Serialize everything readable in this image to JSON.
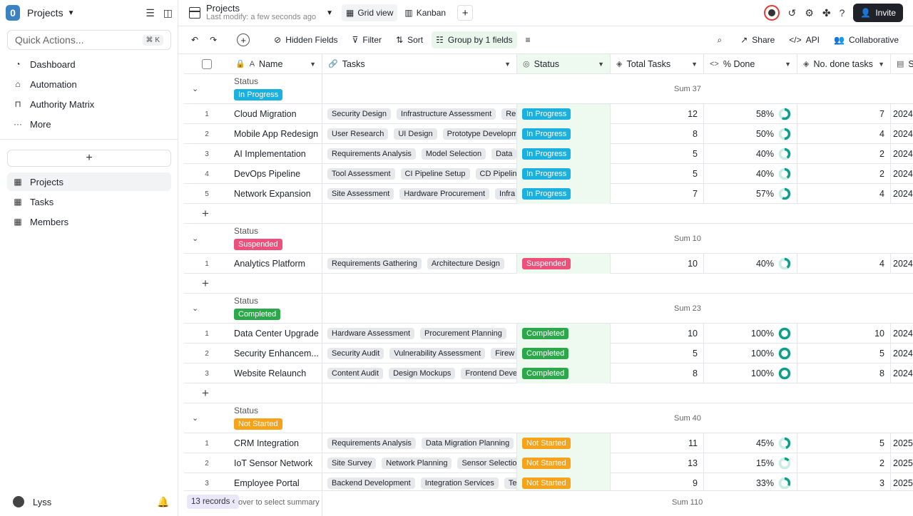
{
  "sidebar": {
    "logo_letter": "0",
    "space_name": "Projects",
    "quick_actions": "Quick Actions...",
    "quick_kbd": "⌘ K",
    "nav": [
      {
        "label": "Dashboard",
        "icon": "dashboard-icon"
      },
      {
        "label": "Automation",
        "icon": "robot-icon"
      },
      {
        "label": "Authority Matrix",
        "icon": "lock-icon"
      },
      {
        "label": "More",
        "icon": "more-icon"
      }
    ],
    "tables": [
      {
        "label": "Projects"
      },
      {
        "label": "Tasks"
      },
      {
        "label": "Members"
      }
    ],
    "user_name": "Lyss"
  },
  "header": {
    "title": "Projects",
    "subtitle": "Last modify: a few seconds ago",
    "views": [
      "Grid view",
      "Kanban"
    ],
    "invite_label": "Invite"
  },
  "toolbar": {
    "hidden_fields": "Hidden Fields",
    "filter": "Filter",
    "sort": "Sort",
    "group": "Group by 1 fields",
    "share": "Share",
    "api": "API",
    "collaborative": "Collaborative"
  },
  "columns": [
    "Name",
    "Tasks",
    "Status",
    "Total Tasks",
    "% Done",
    "No. done tasks",
    "S"
  ],
  "status_colors": {
    "In Progress": "#1ab0e0",
    "Suspended": "#ee4f7b",
    "Completed": "#2ba84a",
    "Not Started": "#f7a21b"
  },
  "groups": [
    {
      "status_label": "Status",
      "status": "In Progress",
      "sum": "Sum 37",
      "rows": [
        {
          "num": "1",
          "name": "Cloud Migration",
          "tasks": [
            "Security Design",
            "Infrastructure Assessment",
            "Re"
          ],
          "total": "12",
          "pct": "58%",
          "pct_value": 58,
          "done": "7",
          "date": "2024"
        },
        {
          "num": "2",
          "name": "Mobile App Redesign",
          "tasks": [
            "User Research",
            "UI Design",
            "Prototype Development"
          ],
          "total": "8",
          "pct": "50%",
          "pct_value": 50,
          "done": "4",
          "date": "2024"
        },
        {
          "num": "3",
          "name": "AI Implementation",
          "tasks": [
            "Requirements Analysis",
            "Model Selection",
            "Data"
          ],
          "total": "5",
          "pct": "40%",
          "pct_value": 40,
          "done": "2",
          "date": "2024"
        },
        {
          "num": "4",
          "name": "DevOps Pipeline",
          "tasks": [
            "Tool Assessment",
            "CI Pipeline Setup",
            "CD Pipeline"
          ],
          "total": "5",
          "pct": "40%",
          "pct_value": 40,
          "done": "2",
          "date": "2024"
        },
        {
          "num": "5",
          "name": "Network Expansion",
          "tasks": [
            "Site Assessment",
            "Hardware Procurement",
            "Infra"
          ],
          "total": "7",
          "pct": "57%",
          "pct_value": 57,
          "done": "4",
          "date": "2024"
        }
      ]
    },
    {
      "status_label": "Status",
      "status": "Suspended",
      "sum": "Sum 10",
      "rows": [
        {
          "num": "1",
          "name": "Analytics Platform",
          "tasks": [
            "Requirements Gathering",
            "Architecture Design"
          ],
          "total": "10",
          "pct": "40%",
          "pct_value": 40,
          "done": "4",
          "date": "2024"
        }
      ]
    },
    {
      "status_label": "Status",
      "status": "Completed",
      "sum": "Sum 23",
      "rows": [
        {
          "num": "1",
          "name": "Data Center Upgrade",
          "tasks": [
            "Hardware Assessment",
            "Procurement Planning"
          ],
          "total": "10",
          "pct": "100%",
          "pct_value": 100,
          "done": "10",
          "date": "2024"
        },
        {
          "num": "2",
          "name": "Security Enhancem...",
          "tasks": [
            "Security Audit",
            "Vulnerability Assessment",
            "Firew"
          ],
          "total": "5",
          "pct": "100%",
          "pct_value": 100,
          "done": "5",
          "date": "2024"
        },
        {
          "num": "3",
          "name": "Website Relaunch",
          "tasks": [
            "Content Audit",
            "Design Mockups",
            "Frontend Development"
          ],
          "total": "8",
          "pct": "100%",
          "pct_value": 100,
          "done": "8",
          "date": "2024"
        }
      ]
    },
    {
      "status_label": "Status",
      "status": "Not Started",
      "sum": "Sum 40",
      "rows": [
        {
          "num": "1",
          "name": "CRM Integration",
          "tasks": [
            "Requirements Analysis",
            "Data Migration Planning"
          ],
          "total": "11",
          "pct": "45%",
          "pct_value": 45,
          "done": "5",
          "date": "2025"
        },
        {
          "num": "2",
          "name": "IoT Sensor Network",
          "tasks": [
            "Site Survey",
            "Network Planning",
            "Sensor Selection"
          ],
          "total": "13",
          "pct": "15%",
          "pct_value": 15,
          "done": "2",
          "date": "2025"
        },
        {
          "num": "3",
          "name": "Employee Portal",
          "tasks": [
            "Backend Development",
            "Integration Services",
            "Te"
          ],
          "total": "9",
          "pct": "33%",
          "pct_value": 33,
          "done": "3",
          "date": "2025"
        }
      ]
    }
  ],
  "footer": {
    "records": "13 records",
    "hover_hint": "over to select summary",
    "sum": "Sum 110"
  }
}
